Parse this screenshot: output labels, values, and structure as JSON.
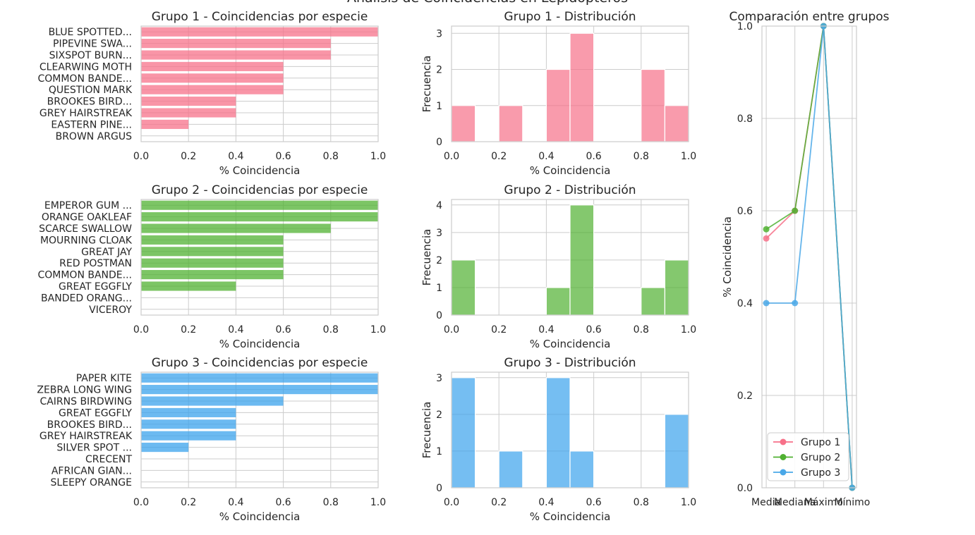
{
  "figure": {
    "suptitle": "Análisis de Coincidencias en Lepidópteros"
  },
  "colors": {
    "grupo1": "#f77189",
    "grupo2": "#50b131",
    "grupo3": "#3ba3ec",
    "grupo3_line": "#4aa8e8"
  },
  "chart_data": [
    {
      "type": "bar",
      "orientation": "horizontal",
      "title": "Grupo 1 - Coincidencias por especie",
      "xlabel": "% Coincidencia",
      "xlim": [
        0,
        1.0
      ],
      "xticks": [
        "0.0",
        "0.2",
        "0.4",
        "0.6",
        "0.8",
        "1.0"
      ],
      "color": "#f77189",
      "categories": [
        "BLUE SPOTTED...",
        "PIPEVINE SWA...",
        "SIXSPOT BURN...",
        "CLEARWING MOTH",
        "COMMON BANDE...",
        "QUESTION MARK",
        "BROOKES BIRD...",
        "GREY HAIRSTREAK",
        "EASTERN PINE...",
        "BROWN ARGUS"
      ],
      "values": [
        1.0,
        0.8,
        0.8,
        0.6,
        0.6,
        0.6,
        0.4,
        0.4,
        0.2,
        0.0
      ]
    },
    {
      "type": "histogram",
      "title": "Grupo 1 - Distribución",
      "xlabel": "% Coincidencia",
      "ylabel": "Frecuencia",
      "xlim": [
        0,
        1.0
      ],
      "ylim": [
        0,
        3.2
      ],
      "xticks": [
        "0.0",
        "0.2",
        "0.4",
        "0.6",
        "0.8",
        "1.0"
      ],
      "yticks": [
        "0",
        "1",
        "2",
        "3"
      ],
      "color": "#f77189",
      "bin_edges": [
        0.0,
        0.1,
        0.2,
        0.3,
        0.4,
        0.5,
        0.6,
        0.7,
        0.8,
        0.9,
        1.0
      ],
      "counts": [
        1,
        0,
        1,
        0,
        2,
        3,
        0,
        0,
        2,
        1
      ]
    },
    {
      "type": "bar",
      "orientation": "horizontal",
      "title": "Grupo 2 - Coincidencias por especie",
      "xlabel": "% Coincidencia",
      "xlim": [
        0,
        1.0
      ],
      "xticks": [
        "0.0",
        "0.2",
        "0.4",
        "0.6",
        "0.8",
        "1.0"
      ],
      "color": "#50b131",
      "categories": [
        "EMPEROR GUM ...",
        "ORANGE OAKLEAF",
        "SCARCE SWALLOW",
        "MOURNING CLOAK",
        "GREAT JAY",
        "RED POSTMAN",
        "COMMON BANDE...",
        "GREAT EGGFLY",
        "BANDED ORANG...",
        "VICEROY"
      ],
      "values": [
        1.0,
        1.0,
        0.8,
        0.6,
        0.6,
        0.6,
        0.6,
        0.4,
        0.0,
        0.0
      ]
    },
    {
      "type": "histogram",
      "title": "Grupo 2 - Distribución",
      "xlabel": "% Coincidencia",
      "ylabel": "Frecuencia",
      "xlim": [
        0,
        1.0
      ],
      "ylim": [
        0,
        4.2
      ],
      "xticks": [
        "0.0",
        "0.2",
        "0.4",
        "0.6",
        "0.8",
        "1.0"
      ],
      "yticks": [
        "0",
        "1",
        "2",
        "3",
        "4"
      ],
      "color": "#50b131",
      "bin_edges": [
        0.0,
        0.1,
        0.2,
        0.3,
        0.4,
        0.5,
        0.6,
        0.7,
        0.8,
        0.9,
        1.0
      ],
      "counts": [
        2,
        0,
        0,
        0,
        1,
        4,
        0,
        0,
        1,
        2
      ]
    },
    {
      "type": "bar",
      "orientation": "horizontal",
      "title": "Grupo 3 - Coincidencias por especie",
      "xlabel": "% Coincidencia",
      "xlim": [
        0,
        1.0
      ],
      "xticks": [
        "0.0",
        "0.2",
        "0.4",
        "0.6",
        "0.8",
        "1.0"
      ],
      "color": "#3ba3ec",
      "categories": [
        "PAPER KITE",
        "ZEBRA LONG WING",
        "CAIRNS BIRDWING",
        "GREAT EGGFLY",
        "BROOKES BIRD...",
        "GREY HAIRSTREAK",
        "SILVER SPOT ...",
        "CRECENT",
        "AFRICAN GIAN...",
        "SLEEPY ORANGE"
      ],
      "values": [
        1.0,
        1.0,
        0.6,
        0.4,
        0.4,
        0.4,
        0.2,
        0.0,
        0.0,
        0.0
      ]
    },
    {
      "type": "histogram",
      "title": "Grupo 3 - Distribución",
      "xlabel": "% Coincidencia",
      "ylabel": "Frecuencia",
      "xlim": [
        0,
        1.0
      ],
      "ylim": [
        0,
        3.15
      ],
      "xticks": [
        "0.0",
        "0.2",
        "0.4",
        "0.6",
        "0.8",
        "1.0"
      ],
      "yticks": [
        "0",
        "1",
        "2",
        "3"
      ],
      "color": "#3ba3ec",
      "bin_edges": [
        0.0,
        0.1,
        0.2,
        0.3,
        0.4,
        0.5,
        0.6,
        0.7,
        0.8,
        0.9,
        1.0
      ],
      "counts": [
        3,
        0,
        1,
        0,
        3,
        1,
        0,
        0,
        0,
        2
      ]
    },
    {
      "type": "line",
      "title": "Comparación entre grupos",
      "ylabel": "% Coincidencia",
      "categories": [
        "Media",
        "Mediana",
        "Máximo",
        "Mínimo"
      ],
      "ylim": [
        0,
        1.0
      ],
      "yticks": [
        "0.0",
        "0.2",
        "0.4",
        "0.6",
        "0.8",
        "1.0"
      ],
      "legend": "lower-left",
      "series": [
        {
          "name": "Grupo 1",
          "color": "#f77189",
          "values": [
            0.54,
            0.6,
            1.0,
            0.0
          ]
        },
        {
          "name": "Grupo 2",
          "color": "#50b131",
          "values": [
            0.56,
            0.6,
            1.0,
            0.0
          ]
        },
        {
          "name": "Grupo 3",
          "color": "#4aa8e8",
          "values": [
            0.4,
            0.4,
            1.0,
            0.0
          ]
        }
      ]
    }
  ]
}
